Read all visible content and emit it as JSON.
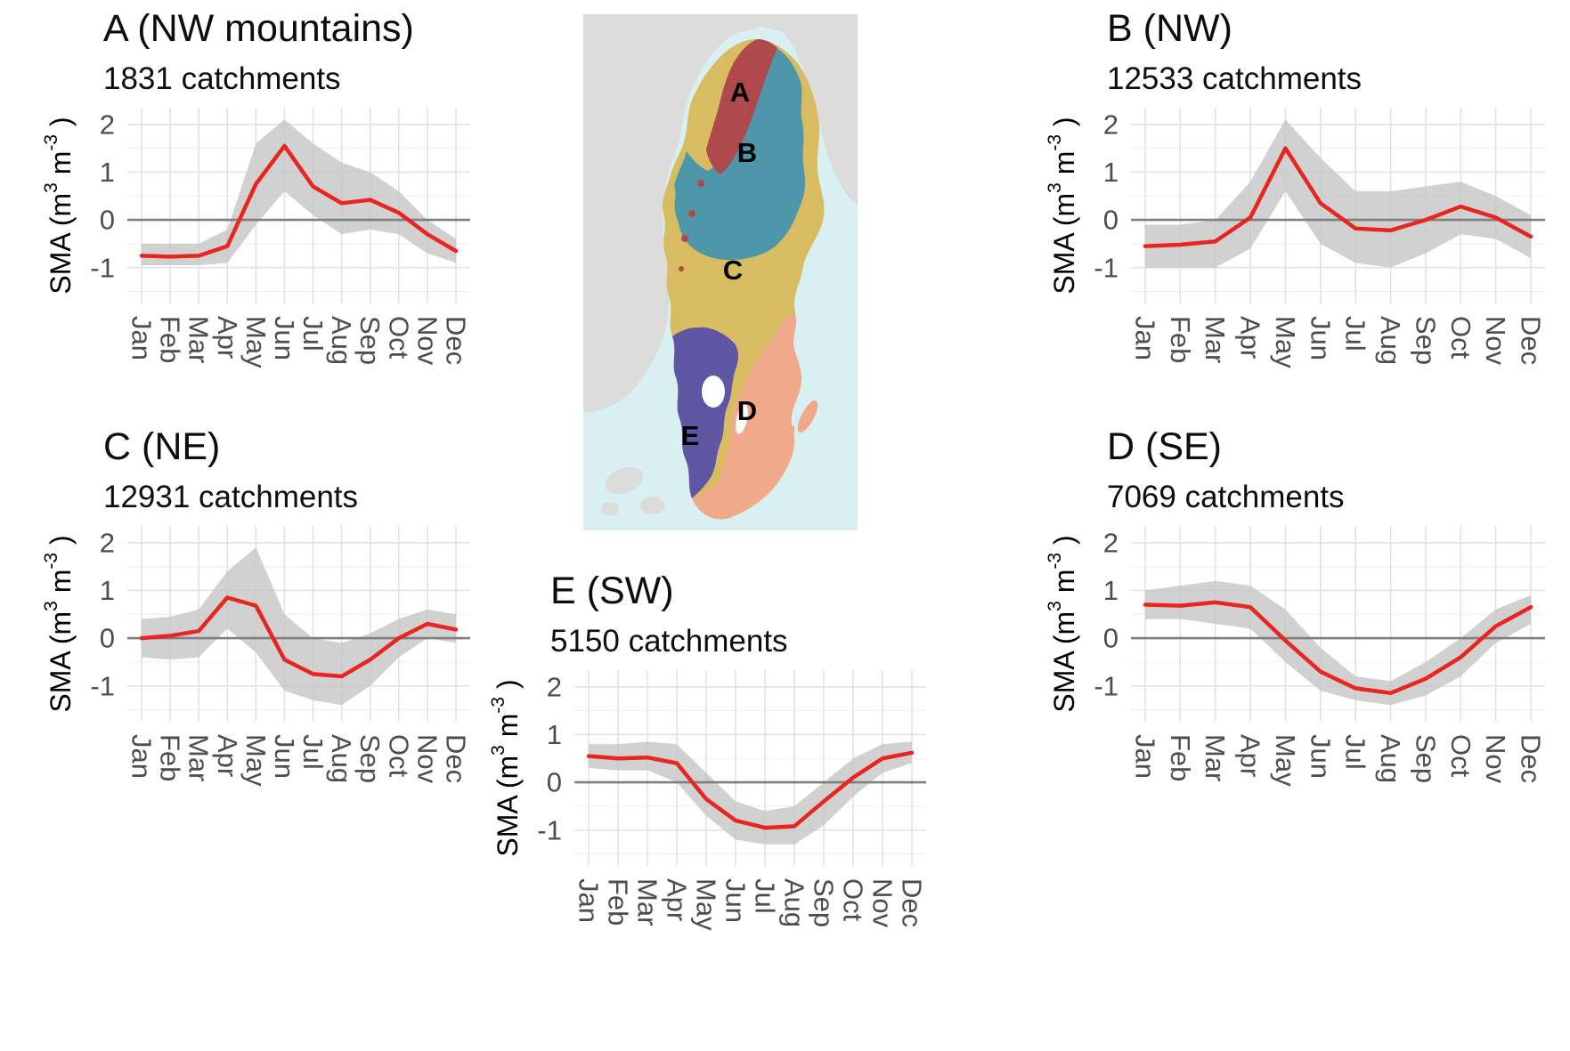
{
  "figure": {
    "background": "#ffffff",
    "accent_red": "#e8251f",
    "band_color": "#c6c6c6",
    "zero_line_color": "#7f7f7f",
    "grid_major": "#e2e2e2",
    "grid_minor": "#f0f0f0",
    "tick_label_color": "#4d4d4d"
  },
  "ylabel_parts": {
    "pre": "SMA (m",
    "sup1": "3",
    "mid": " m",
    "sup2": "-3",
    "post": " )"
  },
  "chart_data": [
    {
      "type": "line",
      "panel": "A",
      "title": "A (NW mountains)",
      "subtitle": "1831 catchments",
      "ylabel": "SMA (m^3 m^-3)",
      "categories": [
        "Jan",
        "Feb",
        "Mar",
        "Apr",
        "May",
        "Jun",
        "Jul",
        "Aug",
        "Sep",
        "Oct",
        "Nov",
        "Dec"
      ],
      "values": [
        -0.75,
        -0.77,
        -0.75,
        -0.55,
        0.75,
        1.55,
        0.7,
        0.35,
        0.42,
        0.15,
        -0.3,
        -0.65
      ],
      "band_upper": [
        -0.5,
        -0.5,
        -0.5,
        -0.2,
        1.6,
        2.1,
        1.6,
        1.2,
        1.0,
        0.6,
        0.0,
        -0.4
      ],
      "band_lower": [
        -0.95,
        -0.95,
        -0.95,
        -0.9,
        -0.1,
        0.6,
        0.1,
        -0.3,
        -0.2,
        -0.3,
        -0.7,
        -0.9
      ],
      "ylim": [
        -1.75,
        2.35
      ],
      "yticks": [
        -1,
        0,
        1,
        2
      ],
      "yminor": [
        -1.5,
        -0.5,
        0.5,
        1.5
      ]
    },
    {
      "type": "line",
      "panel": "B",
      "title": "B (NW)",
      "subtitle": "12533 catchments",
      "ylabel": "SMA (m^3 m^-3)",
      "categories": [
        "Jan",
        "Feb",
        "Mar",
        "Apr",
        "May",
        "Jun",
        "Jul",
        "Aug",
        "Sep",
        "Oct",
        "Nov",
        "Dec"
      ],
      "values": [
        -0.55,
        -0.52,
        -0.45,
        0.05,
        1.5,
        0.35,
        -0.18,
        -0.22,
        0.0,
        0.28,
        0.05,
        -0.35
      ],
      "band_upper": [
        -0.1,
        -0.1,
        0.0,
        0.8,
        2.1,
        1.3,
        0.6,
        0.6,
        0.7,
        0.8,
        0.5,
        0.1
      ],
      "band_lower": [
        -1.0,
        -1.0,
        -1.0,
        -0.6,
        0.6,
        -0.5,
        -0.9,
        -1.0,
        -0.7,
        -0.3,
        -0.4,
        -0.8
      ],
      "ylim": [
        -1.75,
        2.35
      ],
      "yticks": [
        -1,
        0,
        1,
        2
      ],
      "yminor": [
        -1.5,
        -0.5,
        0.5,
        1.5
      ]
    },
    {
      "type": "line",
      "panel": "C",
      "title": "C (NE)",
      "subtitle": "12931 catchments",
      "ylabel": "SMA (m^3 m^-3)",
      "categories": [
        "Jan",
        "Feb",
        "Mar",
        "Apr",
        "May",
        "Jun",
        "Jul",
        "Aug",
        "Sep",
        "Oct",
        "Nov",
        "Dec"
      ],
      "values": [
        0.0,
        0.05,
        0.15,
        0.85,
        0.68,
        -0.45,
        -0.75,
        -0.8,
        -0.45,
        0.0,
        0.3,
        0.18
      ],
      "band_upper": [
        0.4,
        0.45,
        0.6,
        1.4,
        1.9,
        0.5,
        0.0,
        -0.1,
        0.1,
        0.4,
        0.6,
        0.5
      ],
      "band_lower": [
        -0.4,
        -0.45,
        -0.4,
        0.2,
        -0.3,
        -1.1,
        -1.3,
        -1.4,
        -1.0,
        -0.4,
        0.0,
        -0.1
      ],
      "ylim": [
        -1.75,
        2.35
      ],
      "yticks": [
        -1,
        0,
        1,
        2
      ],
      "yminor": [
        -1.5,
        -0.5,
        0.5,
        1.5
      ]
    },
    {
      "type": "line",
      "panel": "D",
      "title": "D (SE)",
      "subtitle": "7069 catchments",
      "ylabel": "SMA (m^3 m^-3)",
      "categories": [
        "Jan",
        "Feb",
        "Mar",
        "Apr",
        "May",
        "Jun",
        "Jul",
        "Aug",
        "Sep",
        "Oct",
        "Nov",
        "Dec"
      ],
      "values": [
        0.7,
        0.68,
        0.75,
        0.65,
        -0.05,
        -0.7,
        -1.05,
        -1.15,
        -0.85,
        -0.4,
        0.25,
        0.65
      ],
      "band_upper": [
        1.0,
        1.1,
        1.2,
        1.1,
        0.6,
        -0.2,
        -0.8,
        -0.9,
        -0.5,
        0.0,
        0.6,
        0.9
      ],
      "band_lower": [
        0.4,
        0.4,
        0.3,
        0.2,
        -0.5,
        -1.1,
        -1.3,
        -1.4,
        -1.2,
        -0.8,
        -0.1,
        0.3
      ],
      "ylim": [
        -1.75,
        2.35
      ],
      "yticks": [
        -1,
        0,
        1,
        2
      ],
      "yminor": [
        -1.5,
        -0.5,
        0.5,
        1.5
      ]
    },
    {
      "type": "line",
      "panel": "E",
      "title": "E (SW)",
      "subtitle": "5150 catchments",
      "ylabel": "SMA (m^3 m^-3)",
      "categories": [
        "Jan",
        "Feb",
        "Mar",
        "Apr",
        "May",
        "Jun",
        "Jul",
        "Aug",
        "Sep",
        "Oct",
        "Nov",
        "Dec"
      ],
      "values": [
        0.55,
        0.5,
        0.52,
        0.4,
        -0.35,
        -0.8,
        -0.95,
        -0.92,
        -0.4,
        0.1,
        0.5,
        0.62
      ],
      "band_upper": [
        0.8,
        0.8,
        0.85,
        0.8,
        0.2,
        -0.4,
        -0.6,
        -0.5,
        0.0,
        0.5,
        0.8,
        0.85
      ],
      "band_lower": [
        0.3,
        0.25,
        0.25,
        0.0,
        -0.7,
        -1.2,
        -1.3,
        -1.3,
        -0.9,
        -0.3,
        0.2,
        0.4
      ],
      "ylim": [
        -1.75,
        2.35
      ],
      "yticks": [
        -1,
        0,
        1,
        2
      ],
      "yminor": [
        -1.5,
        -0.5,
        0.5,
        1.5
      ]
    }
  ],
  "map": {
    "sea_color": "#d8f0f2",
    "neighbor_color": "#dcdcdc",
    "lake_color": "#ffffff",
    "label_color": "#000000",
    "regions": [
      {
        "letter": "A",
        "name": "NW mountains",
        "color": "#b0494e"
      },
      {
        "letter": "B",
        "name": "NW",
        "color": "#4e97ab"
      },
      {
        "letter": "C",
        "name": "NE",
        "color": "#d8bc62"
      },
      {
        "letter": "D",
        "name": "SE",
        "color": "#f0a98a"
      },
      {
        "letter": "E",
        "name": "SW",
        "color": "#5e55a3"
      }
    ]
  }
}
